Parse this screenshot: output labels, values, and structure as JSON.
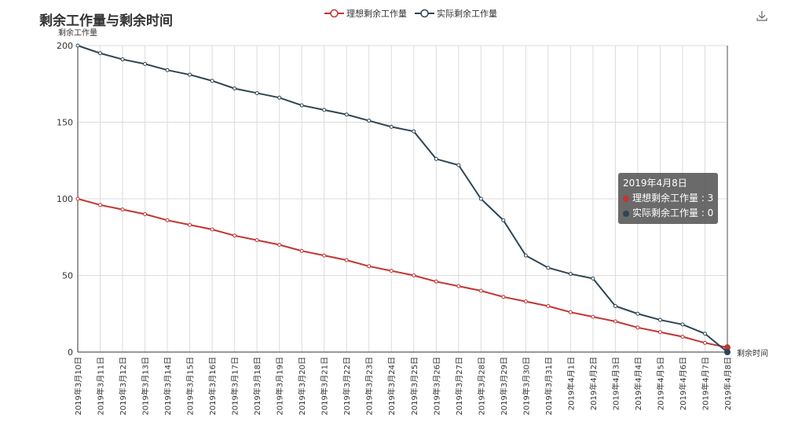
{
  "chart_data": {
    "type": "line",
    "title": "剩余工作量与剩余时间",
    "ylabel": "剩余工作量",
    "xlabel": "剩余时间",
    "ylim": [
      0,
      200
    ],
    "yticks": [
      0,
      50,
      100,
      150,
      200
    ],
    "grid": true,
    "legend_position": "top-center",
    "categories": [
      "2019年3月10日",
      "2019年3月11日",
      "2019年3月12日",
      "2019年3月13日",
      "2019年3月14日",
      "2019年3月15日",
      "2019年3月16日",
      "2019年3月17日",
      "2019年3月18日",
      "2019年3月19日",
      "2019年3月20日",
      "2019年3月21日",
      "2019年3月22日",
      "2019年3月23日",
      "2019年3月24日",
      "2019年3月25日",
      "2019年3月26日",
      "2019年3月27日",
      "2019年3月28日",
      "2019年3月29日",
      "2019年3月30日",
      "2019年3月31日",
      "2019年4月1日",
      "2019年4月2日",
      "2019年4月3日",
      "2019年4月4日",
      "2019年4月5日",
      "2019年4月6日",
      "2019年4月7日",
      "2019年4月8日"
    ],
    "series": [
      {
        "name": "理想剩余工作量",
        "color": "#c23531",
        "values": [
          100,
          96,
          93,
          90,
          86,
          83,
          80,
          76,
          73,
          70,
          66,
          63,
          60,
          56,
          53,
          50,
          46,
          43,
          40,
          36,
          33,
          30,
          26,
          23,
          20,
          16,
          13,
          10,
          6,
          3
        ]
      },
      {
        "name": "实际剩余工作量",
        "color": "#2f4554",
        "values": [
          200,
          195,
          191,
          188,
          184,
          181,
          177,
          172,
          169,
          166,
          161,
          158,
          155,
          151,
          147,
          144,
          126,
          122,
          100,
          86,
          63,
          55,
          51,
          48,
          30,
          25,
          21,
          18,
          12,
          0
        ]
      }
    ]
  },
  "tooltip": {
    "title": "2019年4月8日",
    "rows": [
      {
        "label": "理想剩余工作量 : 3",
        "color": "#c23531"
      },
      {
        "label": "实际剩余工作量 : 0",
        "color": "#2f4554"
      }
    ]
  }
}
